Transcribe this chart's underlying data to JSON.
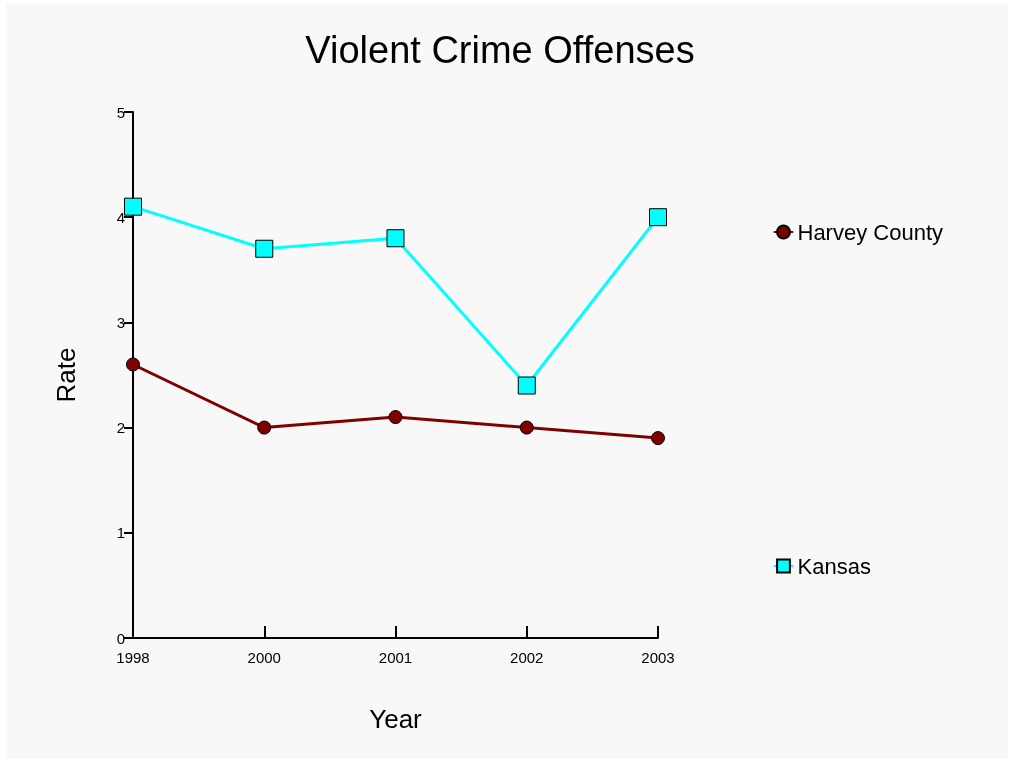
{
  "chart_data": {
    "type": "line",
    "title": "Violent Crime Offenses",
    "xlabel": "Year",
    "ylabel": "Rate",
    "categories": [
      "1998",
      "2000",
      "2001",
      "2002",
      "2003"
    ],
    "series": [
      {
        "name": "Harvey County",
        "color": "#800000",
        "marker": "circle",
        "values": [
          2.6,
          2.0,
          2.1,
          2.0,
          1.9
        ]
      },
      {
        "name": "Kansas",
        "color": "#00ffff",
        "marker": "square",
        "values": [
          4.1,
          3.7,
          3.8,
          2.4,
          4.0
        ]
      }
    ],
    "ylim": [
      0,
      5
    ],
    "yticks": [
      0,
      1,
      2,
      3,
      4,
      5
    ],
    "grid": false,
    "legend": "right",
    "line_style": "solid"
  }
}
